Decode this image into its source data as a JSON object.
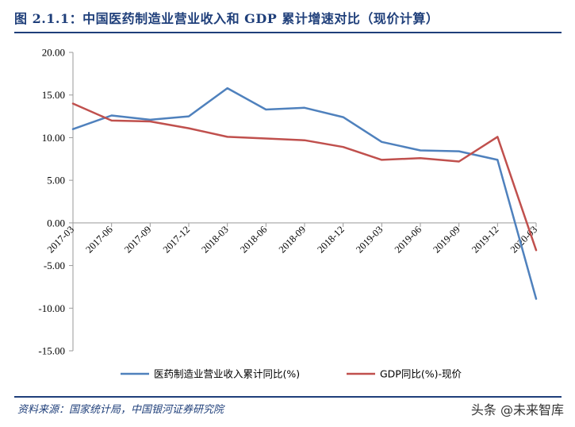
{
  "header": {
    "title": "图 2.1.1：中国医药制造业营业收入和 GDP 累计增速对比（现价计算）"
  },
  "footer": {
    "source": "资料来源：国家统计局，中国银河证券研究院",
    "watermark": "头条 @未来智库"
  },
  "chart_data": {
    "type": "line",
    "categories": [
      "2017-03",
      "2017-06",
      "2017-09",
      "2017-12",
      "2018-03",
      "2018-06",
      "2018-09",
      "2018-12",
      "2019-03",
      "2019-06",
      "2019-09",
      "2019-12",
      "2020-03"
    ],
    "series": [
      {
        "name": "医药制造业营业收入累计同比(%)",
        "color": "#4f81bd",
        "values": [
          11.0,
          12.6,
          12.1,
          12.5,
          15.8,
          13.3,
          13.5,
          12.4,
          9.5,
          8.5,
          8.4,
          7.4,
          -8.9
        ]
      },
      {
        "name": "GDP同比(%)-现价",
        "color": "#c0504d",
        "values": [
          14.0,
          12.0,
          11.9,
          11.1,
          10.1,
          9.9,
          9.7,
          8.9,
          7.4,
          7.6,
          7.2,
          10.1,
          -3.2
        ]
      }
    ],
    "y_ticks": [
      "20.00",
      "15.00",
      "10.00",
      "5.00",
      "0.00",
      "-5.00",
      "-10.00",
      "-15.00"
    ],
    "ylim": [
      -15,
      20
    ],
    "grid": false,
    "legend_position": "bottom"
  }
}
